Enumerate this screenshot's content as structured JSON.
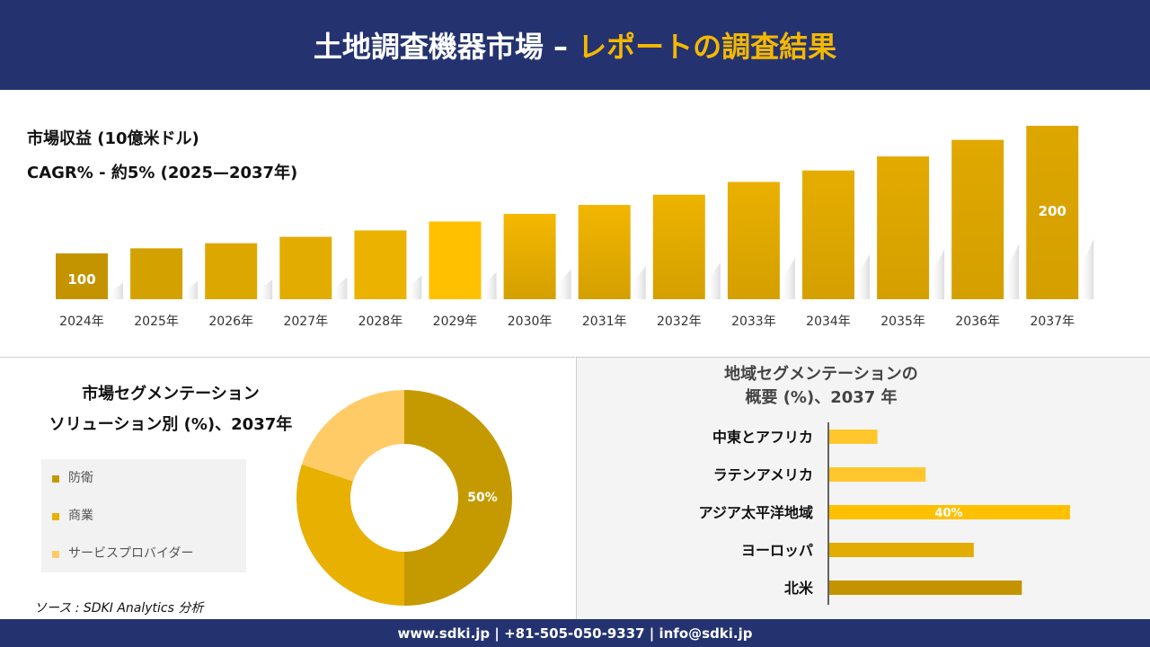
{
  "header": {
    "title_main": "土地調査機器市場 –",
    "title_accent": "レポートの調査結果"
  },
  "colors": {
    "navy": "#243370",
    "gold": "#f5b800"
  },
  "chart_data": [
    {
      "type": "bar",
      "title": "市場収益 (10億米ドル)",
      "subtitle": "CAGR% - 約5% (2025—2037年)",
      "categories": [
        "2024年",
        "2025年",
        "2026年",
        "2027年",
        "2028年",
        "2029年",
        "2030年",
        "2031年",
        "2032年",
        "2033年",
        "2034年",
        "2035年",
        "2036年",
        "2037年"
      ],
      "values": [
        100,
        104,
        108,
        113,
        118,
        125,
        131,
        138,
        146,
        156,
        165,
        176,
        189,
        200
      ],
      "data_labels": {
        "0": "100",
        "13": "200"
      }
    },
    {
      "type": "pie",
      "title_line1": "市場セグメンテーション",
      "title_line2": "ソリューション別 (%)、2037年",
      "labels": [
        "防衛",
        "商業",
        "サービスプロバイダー"
      ],
      "values": [
        50,
        30,
        20
      ],
      "colors": [
        "#c49a00",
        "#e8b000",
        "#ffcb66"
      ],
      "data_label": "50%"
    },
    {
      "type": "bar",
      "orientation": "horizontal",
      "title_line1": "地域セグメンテーションの",
      "title_line2": "概要 (%)、2037 年",
      "categories": [
        "中東とアフリカ",
        "ラテンアメリカ",
        "アジア太平洋地域",
        "ヨーロッパ",
        "北米"
      ],
      "values": [
        8,
        16,
        40,
        24,
        32
      ],
      "colors": [
        "#ffc72c",
        "#ffc72c",
        "#ffc000",
        "#e3ac00",
        "#c49400"
      ],
      "data_label": "40%"
    }
  ],
  "source": "ソース : SDKI Analytics 分析",
  "footer": "www.sdki.jp | +81-505-050-9337 | info@sdki.jp"
}
